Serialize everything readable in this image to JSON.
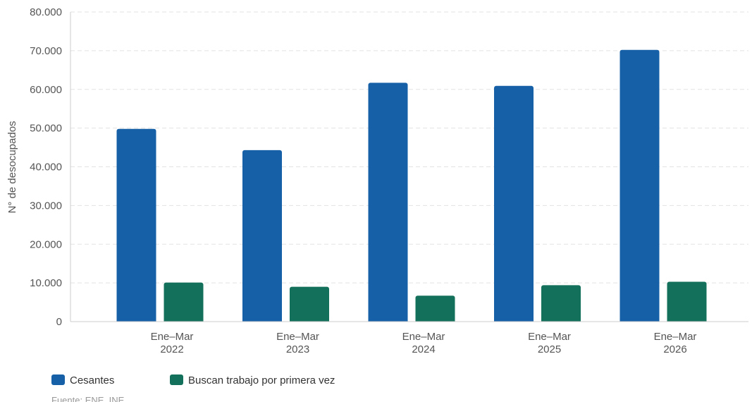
{
  "chart_data": {
    "type": "bar",
    "categories": [
      [
        "Ene–Mar",
        "2022"
      ],
      [
        "Ene–Mar",
        "2023"
      ],
      [
        "Ene–Mar",
        "2024"
      ],
      [
        "Ene–Mar",
        "2025"
      ],
      [
        "Ene–Mar",
        "2026"
      ]
    ],
    "series": [
      {
        "name": "Cesantes",
        "color": "#1660a8",
        "values": [
          49800,
          44300,
          61700,
          60900,
          70200
        ]
      },
      {
        "name": "Buscan trabajo por primera vez",
        "color": "#13705a",
        "values": [
          10100,
          9000,
          6700,
          9400,
          10300
        ]
      }
    ],
    "ylabel": "N° de desocupados",
    "xlabel": "",
    "ylim": [
      0,
      80000
    ],
    "yticks": [
      "0",
      "10.000",
      "20.000",
      "30.000",
      "40.000",
      "50.000",
      "60.000",
      "70.000",
      "80.000"
    ],
    "grid": true,
    "legend_position": "bottom-left"
  },
  "source": "Fuente: ENE, INE."
}
